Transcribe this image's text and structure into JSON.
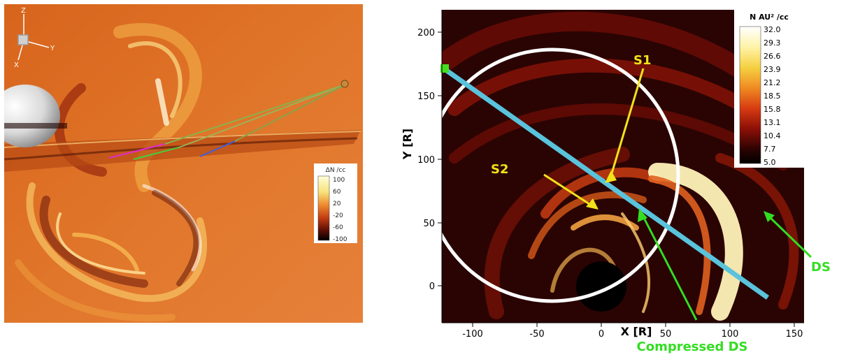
{
  "left_panel": {
    "axes_triad": {
      "z": "Z",
      "y": "Y",
      "x": "X"
    },
    "colorbar": {
      "title": "ΔN /cc",
      "ticks": [
        "100",
        "60",
        "20",
        "-20",
        "-60",
        "-100"
      ]
    }
  },
  "right_panel": {
    "axis": {
      "xlabel": "X [R]",
      "ylabel": "Y [R]",
      "xticks": [
        "-100",
        "-50",
        "0",
        "50",
        "100",
        "150"
      ],
      "yticks": [
        "0",
        "50",
        "100",
        "150",
        "200"
      ],
      "xlim": [
        -125,
        155
      ],
      "ylim": [
        -25,
        225
      ]
    },
    "colorbar": {
      "title": "N AU² /cc",
      "ticks": [
        "32.0",
        "29.3",
        "26.6",
        "23.9",
        "21.2",
        "18.5",
        "15.8",
        "13.1",
        "10.4",
        "7.7",
        "5.0"
      ]
    },
    "annotations": {
      "s1": "S1",
      "s2": "S2",
      "ds": "DS",
      "compressed_ds": "Compressed DS"
    },
    "colors": {
      "s_labels": "#f2e21a",
      "ds_labels": "#33dd22",
      "cut_line": "#59c3dc"
    }
  }
}
